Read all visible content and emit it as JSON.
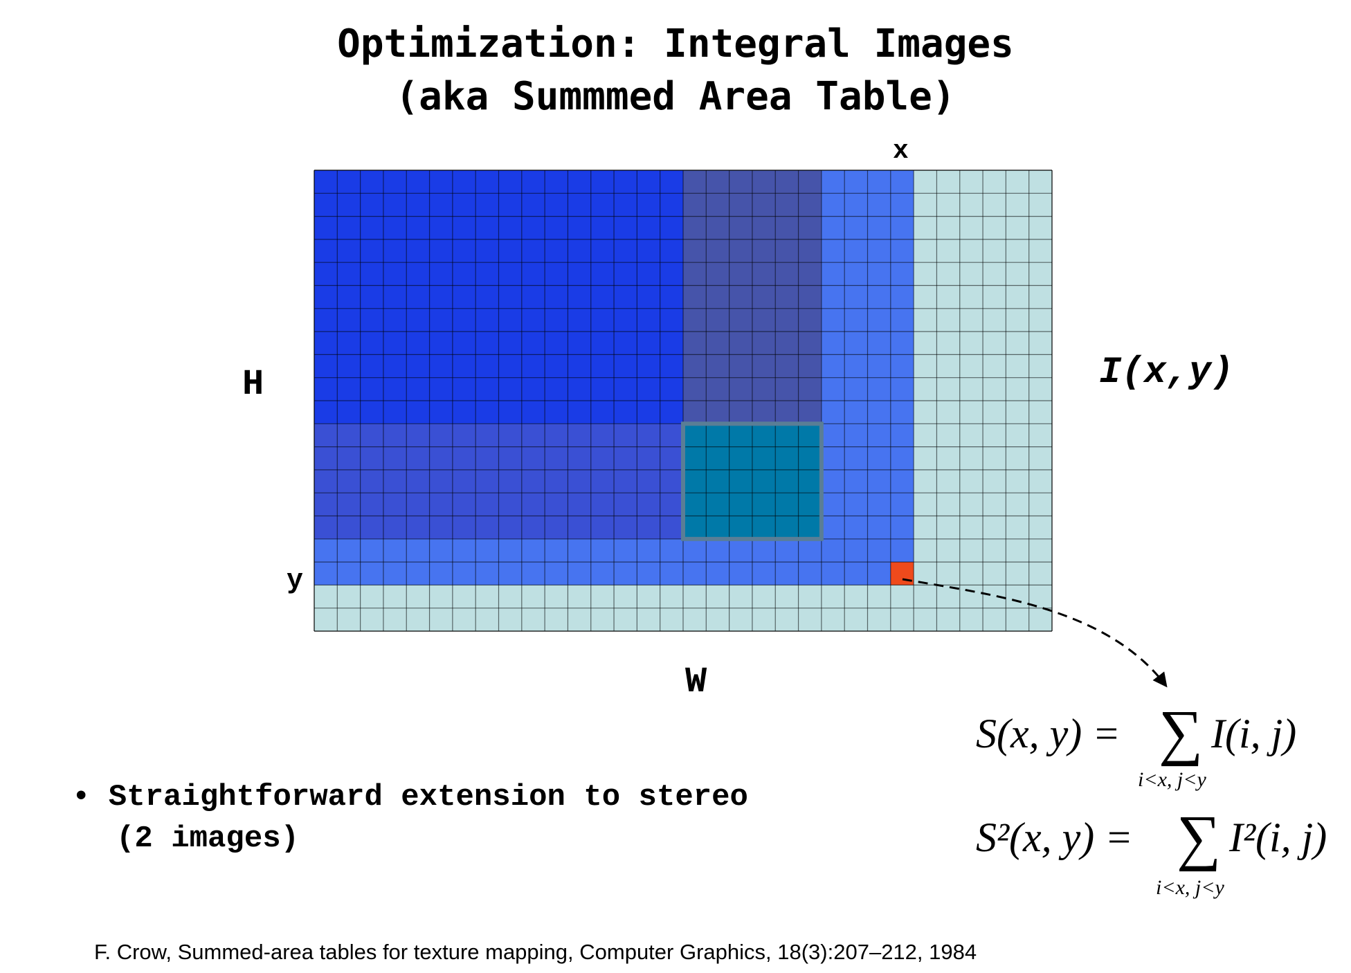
{
  "title": {
    "line1": "Optimization: Integral Images",
    "line2": "(aka Summmed Area Table)"
  },
  "labels": {
    "x": "x",
    "y": "y",
    "H": "H",
    "W": "W",
    "image": "I(x,y)"
  },
  "formulas": {
    "s_lhs": "S(x, y) =",
    "s_sum": "∑",
    "s_rhs": "I(i, j)",
    "s_sub": "i<x, j<y",
    "s2_lhs": "S²(x, y) =",
    "s2_sum": "∑",
    "s2_rhs": "I²(i, j)",
    "s2_sub": "i<x, j<y"
  },
  "bullet": {
    "line1": "• Straightforward extension to stereo",
    "line2": "(2 images)"
  },
  "citation": "F. Crow, Summed-area tables for texture mapping, Computer Graphics, 18(3):207–212, 1984",
  "colors": {
    "background_cell": "#bfe0e2",
    "sum_region": "#4774f0",
    "top_left_region": "#1a3ce6",
    "top_band": "#4654aa",
    "left_band": "#3a50d4",
    "query_box": "#0079a8",
    "query_box_border": "#5a7e96",
    "current_pixel": "#ef4a1c",
    "grid_line": "#000000"
  }
}
